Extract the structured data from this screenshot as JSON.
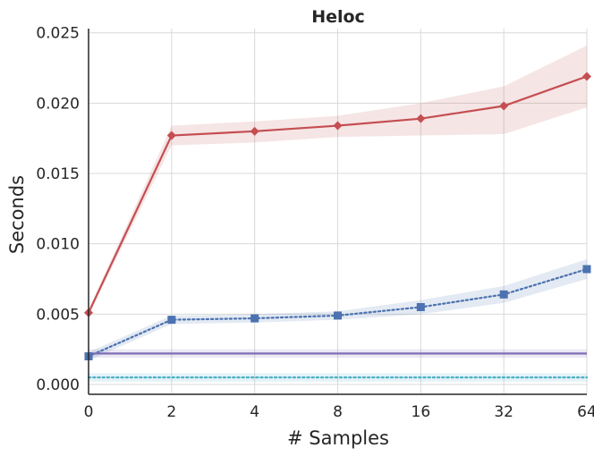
{
  "chart_data": {
    "type": "line",
    "title": "Heloc",
    "xlabel": "# Samples",
    "ylabel": "Seconds",
    "categories": [
      "0",
      "2",
      "4",
      "8",
      "16",
      "32",
      "64"
    ],
    "ylim": [
      -0.0007,
      0.0253
    ],
    "yticks": [
      "0.000",
      "0.005",
      "0.010",
      "0.015",
      "0.020",
      "0.025"
    ],
    "ytick_values": [
      0,
      0.005,
      0.01,
      0.015,
      0.02,
      0.025
    ],
    "grid": true,
    "legend": "none",
    "series": [
      {
        "name": "red-diamond-series",
        "color": "#c44e52",
        "marker": "diamond",
        "linestyle": "solid",
        "values": [
          0.0051,
          0.0177,
          0.018,
          0.0184,
          0.0189,
          0.0198,
          0.0219
        ],
        "lower": [
          0.0049,
          0.017,
          0.0172,
          0.0176,
          0.0177,
          0.0178,
          0.0197
        ],
        "upper": [
          0.0053,
          0.0184,
          0.0187,
          0.0191,
          0.02,
          0.0212,
          0.0241
        ]
      },
      {
        "name": "blue-square-series",
        "color": "#4c72b0",
        "marker": "square",
        "linestyle": "dotted",
        "values": [
          0.002,
          0.0046,
          0.0047,
          0.0049,
          0.0055,
          0.0064,
          0.0082
        ],
        "lower": [
          0.0017,
          0.0043,
          0.0044,
          0.0046,
          0.005,
          0.0058,
          0.0075
        ],
        "upper": [
          0.0023,
          0.0049,
          0.005,
          0.0052,
          0.006,
          0.007,
          0.0089
        ]
      },
      {
        "name": "purple-constant-series",
        "color": "#7f6eb5",
        "marker": "none",
        "linestyle": "solid",
        "values": [
          0.0022,
          0.0022,
          0.0022,
          0.0022,
          0.0022,
          0.0022,
          0.0022
        ],
        "lower": [
          0.0019,
          0.0019,
          0.0019,
          0.0019,
          0.0019,
          0.0019,
          0.0019
        ],
        "upper": [
          0.0025,
          0.0025,
          0.0025,
          0.0025,
          0.0025,
          0.0025,
          0.0025
        ]
      },
      {
        "name": "cyan-constant-series",
        "color": "#4fb0c6",
        "marker": "none",
        "linestyle": "dotted",
        "values": [
          0.0005,
          0.0005,
          0.0005,
          0.0005,
          0.0005,
          0.0005,
          0.0005
        ],
        "lower": [
          0.0002,
          0.0002,
          0.0002,
          0.0002,
          0.0002,
          0.0002,
          0.0002
        ],
        "upper": [
          0.0008,
          0.0008,
          0.0008,
          0.0008,
          0.0008,
          0.0008,
          0.0008
        ]
      }
    ]
  }
}
